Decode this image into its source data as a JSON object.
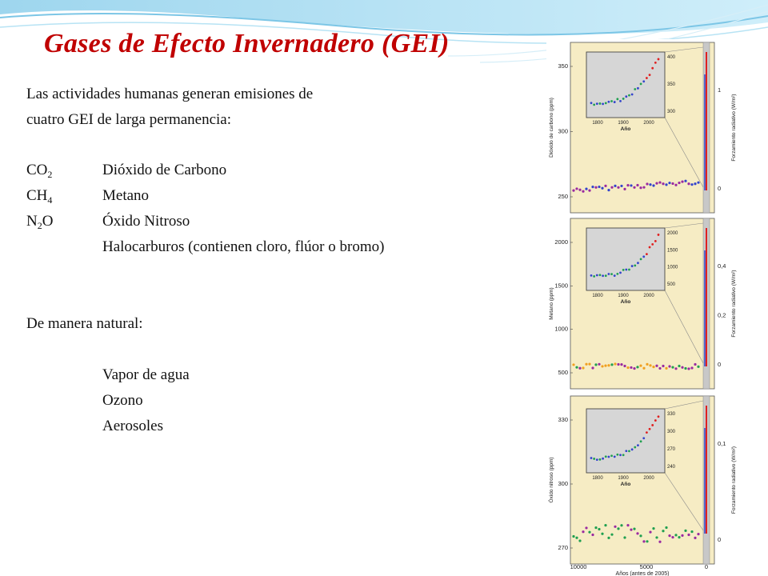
{
  "slide": {
    "title": "Gases de Efecto Invernadero (GEI)",
    "intro_line1": "Las actividades humanas generan emisiones de",
    "intro_line2": "cuatro GEI de larga permanencia:",
    "gases": [
      {
        "formula_main": "CO",
        "formula_sub": "2",
        "formula_tail": "",
        "name": "Dióxido de Carbono"
      },
      {
        "formula_main": "CH",
        "formula_sub": "4",
        "formula_tail": "",
        "name": "Metano"
      },
      {
        "formula_main": "N",
        "formula_sub": "2",
        "formula_tail": "O",
        "name": "Óxido Nitroso"
      },
      {
        "formula_main": "",
        "formula_sub": "",
        "formula_tail": "",
        "name": "Halocarburos (contienen cloro, flúor o bromo)"
      }
    ],
    "natural_heading": "De manera natural:",
    "natural_items": [
      "Vapor de agua",
      "Ozono",
      "Aerosoles"
    ]
  },
  "figure": {
    "panels": [
      {
        "ylabel": "Dióxido de carbono (ppm)",
        "rlabel": "Forzamiento radiativo (W/m²)",
        "yticks": [
          "350",
          "300",
          "250"
        ],
        "rticks": [
          "1",
          "0"
        ],
        "inset_yticks": [
          "400",
          "350",
          "300"
        ],
        "inset_xticks": [
          "1800",
          "1900",
          "2000"
        ],
        "inset_xlabel": "Año"
      },
      {
        "ylabel": "Metano (ppm)",
        "rlabel": "Forzamiento radiativo (W/m²)",
        "yticks": [
          "2000",
          "1500",
          "1000",
          "500"
        ],
        "rticks": [
          "0,4",
          "0,2",
          "0"
        ],
        "inset_yticks": [
          "2000",
          "1500",
          "1000",
          "500"
        ],
        "inset_xticks": [
          "1800",
          "1900",
          "2000"
        ],
        "inset_xlabel": "Año"
      },
      {
        "ylabel": "Óxido nitroso (ppm)",
        "rlabel": "Forzamiento radiativo (W/m²)",
        "yticks": [
          "330",
          "300",
          "270"
        ],
        "rticks": [
          "0,1",
          "0"
        ],
        "inset_yticks": [
          "330",
          "300",
          "270",
          "240"
        ],
        "inset_xticks": [
          "1800",
          "1900",
          "2000"
        ],
        "inset_xlabel": "Año"
      }
    ],
    "xticks": [
      "10000",
      "5000",
      "0"
    ],
    "xlabel": "Años (antes de 2005)",
    "colors": {
      "panel_bg": "#f6ecc4",
      "shaded": "#c8c8c8",
      "inset_bg": "#d6d6d6",
      "red": "#e02020",
      "blue": "#3344cc",
      "green": "#20a050",
      "purple": "#9a2aa0",
      "orange": "#f0a020"
    }
  }
}
